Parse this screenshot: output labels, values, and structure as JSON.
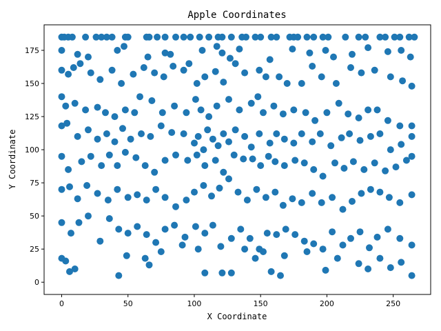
{
  "chart_data": {
    "type": "scatter",
    "title": "Apple Coordinates",
    "xlabel": "X Coordinate",
    "ylabel": "Y Coordinate",
    "xlim": [
      -13.25,
      278.25
    ],
    "ylim": [
      -9.25,
      194.25
    ],
    "xticks": [
      0,
      50,
      100,
      150,
      200,
      250
    ],
    "yticks": [
      0,
      25,
      50,
      75,
      100,
      125,
      150,
      175
    ],
    "grid": false,
    "legend": "none",
    "marker_color": "#1f77b4",
    "points": [
      [
        0,
        185
      ],
      [
        2,
        185
      ],
      [
        5,
        185
      ],
      [
        8,
        185
      ],
      [
        18,
        185
      ],
      [
        26,
        185
      ],
      [
        30,
        185
      ],
      [
        34,
        185
      ],
      [
        38,
        185
      ],
      [
        48,
        185
      ],
      [
        50,
        185
      ],
      [
        64,
        185
      ],
      [
        66,
        185
      ],
      [
        72,
        185
      ],
      [
        78,
        185
      ],
      [
        86,
        185
      ],
      [
        92,
        185
      ],
      [
        97,
        185
      ],
      [
        104,
        185
      ],
      [
        111,
        185
      ],
      [
        118,
        185
      ],
      [
        121,
        185
      ],
      [
        128,
        185
      ],
      [
        136,
        185
      ],
      [
        139,
        185
      ],
      [
        146,
        185
      ],
      [
        150,
        185
      ],
      [
        158,
        185
      ],
      [
        162,
        185
      ],
      [
        172,
        185
      ],
      [
        175,
        185
      ],
      [
        178,
        185
      ],
      [
        185,
        185
      ],
      [
        190,
        185
      ],
      [
        197,
        185
      ],
      [
        201,
        185
      ],
      [
        214,
        185
      ],
      [
        224,
        185
      ],
      [
        229,
        185
      ],
      [
        240,
        185
      ],
      [
        244,
        185
      ],
      [
        251,
        185
      ],
      [
        255,
        185
      ],
      [
        262,
        185
      ],
      [
        266,
        185
      ],
      [
        0,
        175
      ],
      [
        12,
        172
      ],
      [
        20,
        170
      ],
      [
        42,
        175
      ],
      [
        47,
        178
      ],
      [
        65,
        170
      ],
      [
        78,
        173
      ],
      [
        82,
        172
      ],
      [
        96,
        165
      ],
      [
        106,
        175
      ],
      [
        117,
        178
      ],
      [
        121,
        173
      ],
      [
        127,
        169
      ],
      [
        134,
        176
      ],
      [
        157,
        168
      ],
      [
        174,
        176
      ],
      [
        187,
        173
      ],
      [
        199,
        175
      ],
      [
        205,
        170
      ],
      [
        219,
        172
      ],
      [
        231,
        177
      ],
      [
        246,
        174
      ],
      [
        256,
        175
      ],
      [
        263,
        170
      ],
      [
        0,
        160
      ],
      [
        5,
        157
      ],
      [
        9,
        162
      ],
      [
        14,
        165
      ],
      [
        22,
        158
      ],
      [
        29,
        153
      ],
      [
        38,
        160
      ],
      [
        45,
        150
      ],
      [
        54,
        157
      ],
      [
        62,
        162
      ],
      [
        70,
        158
      ],
      [
        77,
        155
      ],
      [
        84,
        163
      ],
      [
        92,
        160
      ],
      [
        102,
        150
      ],
      [
        108,
        155
      ],
      [
        116,
        159
      ],
      [
        122,
        151
      ],
      [
        131,
        165
      ],
      [
        138,
        158
      ],
      [
        149,
        160
      ],
      [
        154,
        155
      ],
      [
        164,
        155
      ],
      [
        170,
        150
      ],
      [
        181,
        150
      ],
      [
        189,
        163
      ],
      [
        196,
        155
      ],
      [
        207,
        150
      ],
      [
        218,
        162
      ],
      [
        226,
        158
      ],
      [
        236,
        160
      ],
      [
        248,
        155
      ],
      [
        257,
        152
      ],
      [
        264,
        148
      ],
      [
        0,
        140
      ],
      [
        3,
        133
      ],
      [
        10,
        135
      ],
      [
        18,
        130
      ],
      [
        27,
        132
      ],
      [
        33,
        128
      ],
      [
        40,
        125
      ],
      [
        48,
        130
      ],
      [
        55,
        128
      ],
      [
        59,
        140
      ],
      [
        68,
        137
      ],
      [
        76,
        128
      ],
      [
        85,
        133
      ],
      [
        94,
        128
      ],
      [
        101,
        138
      ],
      [
        105,
        130
      ],
      [
        111,
        125
      ],
      [
        117,
        133
      ],
      [
        126,
        138
      ],
      [
        134,
        130
      ],
      [
        143,
        135
      ],
      [
        148,
        140
      ],
      [
        152,
        128
      ],
      [
        160,
        133
      ],
      [
        167,
        127
      ],
      [
        175,
        130
      ],
      [
        184,
        128
      ],
      [
        191,
        122
      ],
      [
        200,
        128
      ],
      [
        209,
        135
      ],
      [
        216,
        127
      ],
      [
        224,
        124
      ],
      [
        231,
        130
      ],
      [
        238,
        130
      ],
      [
        246,
        122
      ],
      [
        255,
        118
      ],
      [
        264,
        110
      ],
      [
        0,
        118
      ],
      [
        4,
        120
      ],
      [
        12,
        110
      ],
      [
        20,
        115
      ],
      [
        27,
        108
      ],
      [
        34,
        112
      ],
      [
        40,
        106
      ],
      [
        46,
        116
      ],
      [
        52,
        108
      ],
      [
        60,
        112
      ],
      [
        67,
        110
      ],
      [
        75,
        118
      ],
      [
        83,
        113
      ],
      [
        92,
        112
      ],
      [
        100,
        105
      ],
      [
        103,
        110
      ],
      [
        107,
        100
      ],
      [
        110,
        115
      ],
      [
        114,
        108
      ],
      [
        118,
        103
      ],
      [
        122,
        112
      ],
      [
        126,
        106
      ],
      [
        131,
        115
      ],
      [
        138,
        110
      ],
      [
        143,
        102
      ],
      [
        149,
        112
      ],
      [
        157,
        105
      ],
      [
        162,
        112
      ],
      [
        168,
        108
      ],
      [
        175,
        105
      ],
      [
        181,
        112
      ],
      [
        189,
        106
      ],
      [
        195,
        112
      ],
      [
        203,
        103
      ],
      [
        211,
        109
      ],
      [
        217,
        112
      ],
      [
        225,
        107
      ],
      [
        233,
        110
      ],
      [
        240,
        112
      ],
      [
        248,
        100
      ],
      [
        256,
        104
      ],
      [
        264,
        118
      ],
      [
        0,
        95
      ],
      [
        5,
        85
      ],
      [
        15,
        91
      ],
      [
        22,
        95
      ],
      [
        30,
        88
      ],
      [
        36,
        96
      ],
      [
        42,
        88
      ],
      [
        48,
        98
      ],
      [
        56,
        94
      ],
      [
        63,
        88
      ],
      [
        70,
        83
      ],
      [
        78,
        92
      ],
      [
        86,
        96
      ],
      [
        95,
        92
      ],
      [
        102,
        96
      ],
      [
        108,
        88
      ],
      [
        116,
        92
      ],
      [
        122,
        83
      ],
      [
        130,
        96
      ],
      [
        137,
        93
      ],
      [
        144,
        93
      ],
      [
        150,
        88
      ],
      [
        156,
        95
      ],
      [
        161,
        91
      ],
      [
        168,
        88
      ],
      [
        176,
        92
      ],
      [
        183,
        90
      ],
      [
        190,
        85
      ],
      [
        197,
        80
      ],
      [
        206,
        90
      ],
      [
        213,
        86
      ],
      [
        220,
        91
      ],
      [
        228,
        85
      ],
      [
        236,
        90
      ],
      [
        244,
        84
      ],
      [
        252,
        87
      ],
      [
        260,
        92
      ],
      [
        264,
        95
      ],
      [
        0,
        70
      ],
      [
        6,
        72
      ],
      [
        12,
        63
      ],
      [
        19,
        73
      ],
      [
        27,
        67
      ],
      [
        35,
        62
      ],
      [
        42,
        70
      ],
      [
        50,
        64
      ],
      [
        57,
        66
      ],
      [
        64,
        62
      ],
      [
        71,
        70
      ],
      [
        78,
        64
      ],
      [
        86,
        57
      ],
      [
        94,
        62
      ],
      [
        100,
        68
      ],
      [
        107,
        73
      ],
      [
        113,
        65
      ],
      [
        119,
        71
      ],
      [
        126,
        78
      ],
      [
        133,
        68
      ],
      [
        140,
        62
      ],
      [
        147,
        70
      ],
      [
        154,
        64
      ],
      [
        161,
        68
      ],
      [
        167,
        58
      ],
      [
        174,
        63
      ],
      [
        181,
        60
      ],
      [
        189,
        67
      ],
      [
        196,
        60
      ],
      [
        204,
        64
      ],
      [
        212,
        55
      ],
      [
        219,
        61
      ],
      [
        226,
        67
      ],
      [
        233,
        70
      ],
      [
        240,
        68
      ],
      [
        247,
        64
      ],
      [
        255,
        60
      ],
      [
        264,
        66
      ],
      [
        0,
        45
      ],
      [
        7,
        37
      ],
      [
        13,
        45
      ],
      [
        20,
        50
      ],
      [
        29,
        31
      ],
      [
        36,
        48
      ],
      [
        43,
        40
      ],
      [
        50,
        37
      ],
      [
        57,
        42
      ],
      [
        64,
        36
      ],
      [
        71,
        30
      ],
      [
        78,
        40
      ],
      [
        85,
        43
      ],
      [
        93,
        34
      ],
      [
        101,
        42
      ],
      [
        108,
        37
      ],
      [
        114,
        43
      ],
      [
        120,
        27
      ],
      [
        128,
        33
      ],
      [
        135,
        40
      ],
      [
        142,
        33
      ],
      [
        149,
        25
      ],
      [
        155,
        37
      ],
      [
        162,
        36
      ],
      [
        169,
        40
      ],
      [
        176,
        36
      ],
      [
        183,
        31
      ],
      [
        190,
        29
      ],
      [
        197,
        25
      ],
      [
        204,
        38
      ],
      [
        212,
        28
      ],
      [
        218,
        33
      ],
      [
        225,
        38
      ],
      [
        232,
        26
      ],
      [
        238,
        34
      ],
      [
        246,
        40
      ],
      [
        255,
        33
      ],
      [
        264,
        28
      ],
      [
        0,
        18
      ],
      [
        3,
        16
      ],
      [
        6,
        8
      ],
      [
        10,
        10
      ],
      [
        43,
        5
      ],
      [
        49,
        20
      ],
      [
        63,
        18
      ],
      [
        66,
        13
      ],
      [
        75,
        23
      ],
      [
        91,
        28
      ],
      [
        103,
        25
      ],
      [
        108,
        7
      ],
      [
        121,
        7
      ],
      [
        128,
        7
      ],
      [
        138,
        25
      ],
      [
        146,
        18
      ],
      [
        152,
        23
      ],
      [
        158,
        8
      ],
      [
        165,
        5
      ],
      [
        168,
        20
      ],
      [
        185,
        23
      ],
      [
        199,
        9
      ],
      [
        208,
        18
      ],
      [
        224,
        14
      ],
      [
        231,
        10
      ],
      [
        240,
        18
      ],
      [
        248,
        11
      ],
      [
        256,
        15
      ],
      [
        264,
        5
      ]
    ]
  }
}
